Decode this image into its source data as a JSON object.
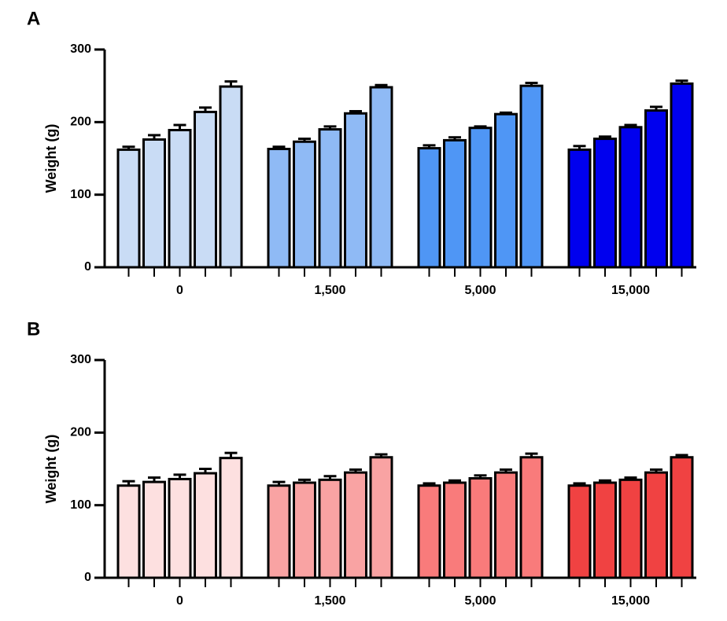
{
  "chart_data": [
    {
      "type": "bar",
      "panel": "A",
      "ylabel": "Weight (g)",
      "categories": [
        "0",
        "1,500",
        "5,000",
        "15,000"
      ],
      "colors": [
        "#c9dcf5",
        "#8fbaf5",
        "#4f96f5",
        "#0000ee"
      ],
      "series": [
        {
          "values": [
            162,
            163,
            164,
            162
          ],
          "errors": [
            4,
            3,
            4,
            5
          ]
        },
        {
          "values": [
            176,
            173,
            175,
            177
          ],
          "errors": [
            6,
            4,
            4,
            3
          ]
        },
        {
          "values": [
            189,
            190,
            192,
            193
          ],
          "errors": [
            7,
            4,
            2,
            3
          ]
        },
        {
          "values": [
            214,
            212,
            211,
            216
          ],
          "errors": [
            6,
            3,
            2,
            5
          ]
        },
        {
          "values": [
            249,
            248,
            250,
            253
          ],
          "errors": [
            7,
            3,
            4,
            4
          ]
        }
      ],
      "ylim": [
        0,
        300
      ],
      "yticks": [
        0,
        100,
        200,
        300
      ]
    },
    {
      "type": "bar",
      "panel": "B",
      "ylabel": "Weight (g)",
      "categories": [
        "0",
        "1,500",
        "5,000",
        "15,000"
      ],
      "colors": [
        "#fde0e0",
        "#f9a3a3",
        "#f97b7b",
        "#f04242"
      ],
      "series": [
        {
          "values": [
            127,
            127,
            127,
            127
          ],
          "errors": [
            6,
            5,
            3,
            3
          ]
        },
        {
          "values": [
            132,
            131,
            131,
            131
          ],
          "errors": [
            6,
            4,
            3,
            3
          ]
        },
        {
          "values": [
            136,
            135,
            137,
            135
          ],
          "errors": [
            6,
            5,
            4,
            3
          ]
        },
        {
          "values": [
            144,
            145,
            145,
            145
          ],
          "errors": [
            6,
            4,
            4,
            4
          ]
        },
        {
          "values": [
            165,
            166,
            166,
            166
          ],
          "errors": [
            7,
            4,
            5,
            3
          ]
        }
      ],
      "ylim": [
        0,
        300
      ],
      "yticks": [
        0,
        100,
        200,
        300
      ]
    }
  ]
}
